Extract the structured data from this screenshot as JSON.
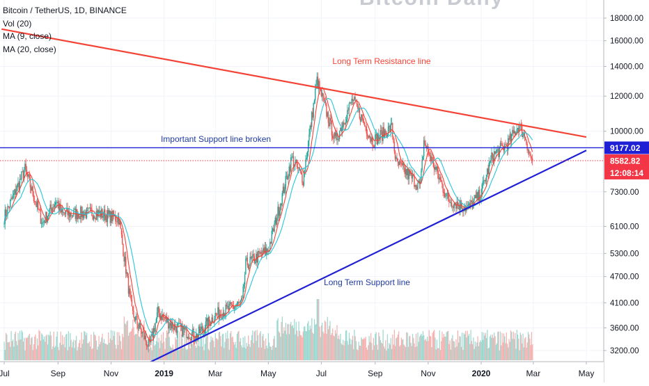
{
  "header": {
    "symbol_line": "Bitcoin / TetherUS, 1D, BINANCE",
    "indicators": [
      "Vol (20)",
      "MA (9, close)",
      "MA (20, close)"
    ],
    "watermark": "Bitcoin Daily"
  },
  "colors": {
    "up": "#26a69a",
    "down": "#ef5350",
    "ma9": "#f44336",
    "ma20": "#26c6da",
    "resistance": "#f44336",
    "support": "#1f1fd6",
    "vol_up": "#9ad7cf",
    "vol_down": "#f4b0ae",
    "axis_text": "#131722",
    "price_tag": "#f23645",
    "support_tag": "#1f1fd6"
  },
  "chart_data": {
    "type": "candlestick",
    "price_scale": "log",
    "x_range": [
      "2018-07-01",
      "2020-05-10"
    ],
    "y_range": [
      3000,
      20000
    ],
    "y_ticks": [
      "18000.00",
      "16000.00",
      "14000.00",
      "12000.00",
      "10000.00",
      "7300.00",
      "6100.00",
      "5300.00",
      "4700.00",
      "4100.00",
      "3600.00",
      "3200.00"
    ],
    "x_ticks": [
      {
        "label": "Jul",
        "date": "2018-07-01"
      },
      {
        "label": "Sep",
        "date": "2018-09-01"
      },
      {
        "label": "Nov",
        "date": "2018-11-01"
      },
      {
        "label": "2019",
        "date": "2019-01-01"
      },
      {
        "label": "Mar",
        "date": "2019-03-01"
      },
      {
        "label": "May",
        "date": "2019-05-01"
      },
      {
        "label": "Jul",
        "date": "2019-07-01"
      },
      {
        "label": "Sep",
        "date": "2019-09-01"
      },
      {
        "label": "Nov",
        "date": "2019-11-01"
      },
      {
        "label": "2020",
        "date": "2020-01-01"
      },
      {
        "label": "Mar",
        "date": "2020-03-01"
      },
      {
        "label": "May",
        "date": "2020-05-01"
      }
    ],
    "price_anchors": [
      {
        "date": "2018-07-01",
        "close": 6400
      },
      {
        "date": "2018-07-25",
        "close": 8200
      },
      {
        "date": "2018-08-14",
        "close": 6200
      },
      {
        "date": "2018-08-30",
        "close": 7000
      },
      {
        "date": "2018-09-05",
        "close": 6500
      },
      {
        "date": "2018-10-15",
        "close": 6550
      },
      {
        "date": "2018-11-10",
        "close": 6350
      },
      {
        "date": "2018-11-25",
        "close": 3900
      },
      {
        "date": "2018-12-15",
        "close": 3250
      },
      {
        "date": "2018-12-25",
        "close": 3900
      },
      {
        "date": "2019-01-10",
        "close": 3650
      },
      {
        "date": "2019-02-07",
        "close": 3450
      },
      {
        "date": "2019-03-01",
        "close": 3850
      },
      {
        "date": "2019-04-01",
        "close": 4100
      },
      {
        "date": "2019-04-05",
        "close": 5000
      },
      {
        "date": "2019-05-01",
        "close": 5400
      },
      {
        "date": "2019-05-28",
        "close": 8700
      },
      {
        "date": "2019-06-10",
        "close": 7800
      },
      {
        "date": "2019-06-26",
        "close": 13000
      },
      {
        "date": "2019-07-17",
        "close": 9500
      },
      {
        "date": "2019-08-06",
        "close": 11800
      },
      {
        "date": "2019-08-29",
        "close": 9500
      },
      {
        "date": "2019-09-20",
        "close": 10200
      },
      {
        "date": "2019-09-25",
        "close": 8500
      },
      {
        "date": "2019-10-23",
        "close": 7500
      },
      {
        "date": "2019-10-27",
        "close": 9500
      },
      {
        "date": "2019-11-24",
        "close": 7000
      },
      {
        "date": "2019-12-17",
        "close": 6700
      },
      {
        "date": "2019-12-31",
        "close": 7200
      },
      {
        "date": "2020-01-14",
        "close": 8800
      },
      {
        "date": "2020-02-01",
        "close": 9400
      },
      {
        "date": "2020-02-13",
        "close": 10300
      },
      {
        "date": "2020-02-21",
        "close": 9700
      },
      {
        "date": "2020-02-26",
        "close": 8800
      },
      {
        "date": "2020-02-29",
        "close": 8583
      }
    ],
    "annotations": [
      {
        "kind": "line",
        "name": "resistance",
        "label": "Long Term Resistance line",
        "from": {
          "date": "2018-06-28",
          "price": 17000
        },
        "to": {
          "date": "2020-05-01",
          "price": 9700
        }
      },
      {
        "kind": "line",
        "name": "support",
        "label": "Long Term Support line",
        "from": {
          "date": "2018-12-14",
          "price": 3000
        },
        "to": {
          "date": "2020-05-01",
          "price": 9050
        }
      },
      {
        "kind": "hline",
        "name": "support-broken",
        "label": "Important Support line broken",
        "price": 9177.02
      },
      {
        "kind": "hline-dotted",
        "name": "last-price",
        "price": 8582.82
      }
    ],
    "price_labels": {
      "support_value": "9177.02",
      "last_price": "8582.82",
      "countdown": "12:08:14"
    }
  }
}
